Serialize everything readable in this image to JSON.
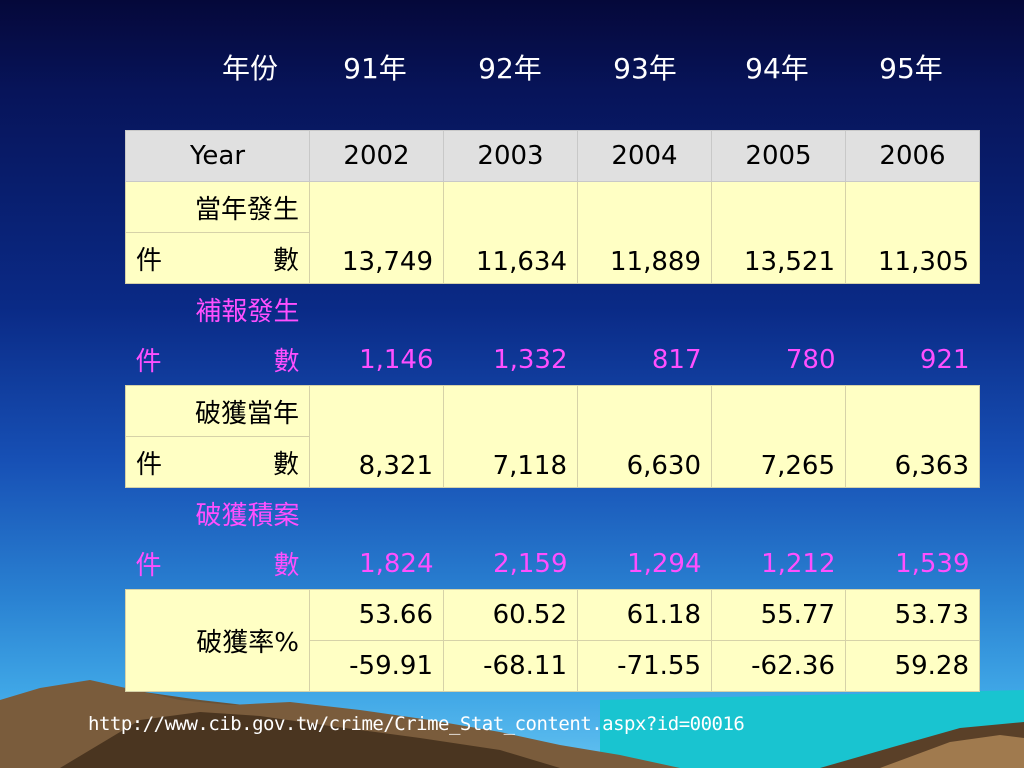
{
  "roc_year_header": {
    "label": "年份",
    "years": [
      "91年",
      "92年",
      "93年",
      "94年",
      "95年"
    ]
  },
  "table": {
    "header": {
      "label": "Year",
      "years": [
        "2002",
        "2003",
        "2004",
        "2005",
        "2006"
      ]
    },
    "row1": {
      "label_line1": "當年發生",
      "label_line2_a": "件",
      "label_line2_b": "數",
      "values": [
        "13,749",
        "11,634",
        "11,889",
        "13,521",
        "11,305"
      ]
    },
    "row2": {
      "label_line1": "補報發生",
      "label_line2_a": "件",
      "label_line2_b": "數",
      "values": [
        "1,146",
        "1,332",
        "817",
        "780",
        "921"
      ]
    },
    "row3": {
      "label_line1": "破獲當年",
      "label_line2_a": "件",
      "label_line2_b": "數",
      "values": [
        "8,321",
        "7,118",
        "6,630",
        "7,265",
        "6,363"
      ]
    },
    "row4": {
      "label_line1": "破獲積案",
      "label_line2_a": "件",
      "label_line2_b": "數",
      "values": [
        "1,824",
        "2,159",
        "1,294",
        "1,212",
        "1,539"
      ]
    },
    "rate": {
      "label": "破獲率%",
      "values_a": [
        "53.66",
        "60.52",
        "61.18",
        "55.77",
        "53.73"
      ],
      "values_b": [
        "-59.91",
        "-68.11",
        "-71.55",
        "-62.36",
        "59.28"
      ]
    }
  },
  "source_url": "http://www.cib.gov.tw/crime/Crime_Stat_content.aspx?id=00016",
  "colors": {
    "highlight_text": "#ff4fff",
    "yellow_fill": "#ffffc4",
    "header_fill": "#e0e0e0"
  }
}
